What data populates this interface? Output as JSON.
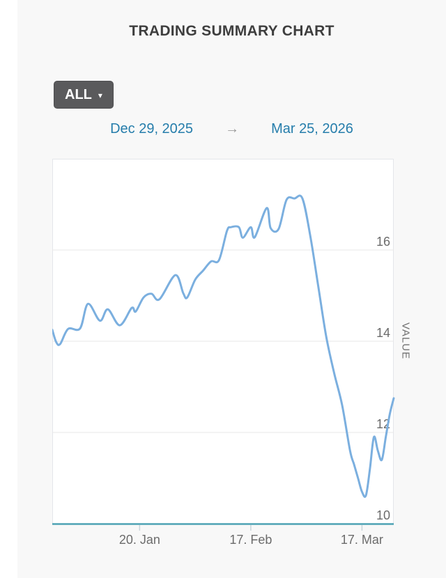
{
  "header": {
    "title": "TRADING SUMMARY CHART"
  },
  "toolbar": {
    "range_button_label": "ALL",
    "caret": "▾"
  },
  "date_range": {
    "start": "Dec 29, 2025",
    "arrow": "→",
    "end": "Mar 25, 2026"
  },
  "colors": {
    "page_background": "#f8f8f8",
    "plot_background": "#ffffff",
    "gridline": "#e7e7e7",
    "plot_border": "#e4e6ea",
    "accent_line": "#7bafdf",
    "axis_baseline": "#4da2b4",
    "tick_mark": "#c9d6dc",
    "axis_text": "#6b6b6b",
    "date_link": "#257dab",
    "button_background": "#5a5a5c"
  },
  "chart_data": {
    "type": "line",
    "title": "TRADING SUMMARY CHART",
    "ylabel": "VALUE",
    "xlabel": "",
    "ylim": [
      10,
      18
    ],
    "yticks": [
      16,
      14,
      12,
      10
    ],
    "xlim": [
      "2025-12-29",
      "2026-03-25"
    ],
    "xticks": [
      {
        "date": "2026-01-20",
        "label": "20. Jan"
      },
      {
        "date": "2026-02-17",
        "label": "17. Feb"
      },
      {
        "date": "2026-03-17",
        "label": "17. Mar"
      }
    ],
    "grid": "horizontal-only",
    "legend": "none",
    "series": [
      {
        "name": "VALUE",
        "points": [
          [
            "2025-12-29",
            14.25
          ],
          [
            "2025-12-30",
            13.98
          ],
          [
            "2025-12-31",
            13.94
          ],
          [
            "2026-01-02",
            14.27
          ],
          [
            "2026-01-05",
            14.28
          ],
          [
            "2026-01-07",
            14.82
          ],
          [
            "2026-01-10",
            14.45
          ],
          [
            "2026-01-12",
            14.7
          ],
          [
            "2026-01-15",
            14.35
          ],
          [
            "2026-01-18",
            14.73
          ],
          [
            "2026-01-19",
            14.65
          ],
          [
            "2026-01-21",
            14.96
          ],
          [
            "2026-01-23",
            15.04
          ],
          [
            "2026-01-25",
            14.92
          ],
          [
            "2026-01-29",
            15.45
          ],
          [
            "2026-01-31",
            15.05
          ],
          [
            "2026-02-01",
            14.96
          ],
          [
            "2026-02-03",
            15.35
          ],
          [
            "2026-02-05",
            15.55
          ],
          [
            "2026-02-07",
            15.75
          ],
          [
            "2026-02-09",
            15.78
          ],
          [
            "2026-02-11",
            16.42
          ],
          [
            "2026-02-12",
            16.5
          ],
          [
            "2026-02-14",
            16.5
          ],
          [
            "2026-02-15",
            16.27
          ],
          [
            "2026-02-17",
            16.5
          ],
          [
            "2026-02-18",
            16.28
          ],
          [
            "2026-02-21",
            16.92
          ],
          [
            "2026-02-22",
            16.48
          ],
          [
            "2026-02-24",
            16.46
          ],
          [
            "2026-02-26",
            17.1
          ],
          [
            "2026-02-28",
            17.13
          ],
          [
            "2026-03-02",
            17.13
          ],
          [
            "2026-03-04",
            16.3
          ],
          [
            "2026-03-06",
            15.2
          ],
          [
            "2026-03-08",
            14.1
          ],
          [
            "2026-03-10",
            13.3
          ],
          [
            "2026-03-12",
            12.6
          ],
          [
            "2026-03-14",
            11.6
          ],
          [
            "2026-03-15",
            11.3
          ],
          [
            "2026-03-16",
            11.0
          ],
          [
            "2026-03-17",
            10.7
          ],
          [
            "2026-03-18",
            10.62
          ],
          [
            "2026-03-19",
            11.2
          ],
          [
            "2026-03-20",
            11.9
          ],
          [
            "2026-03-21",
            11.6
          ],
          [
            "2026-03-22",
            11.4
          ],
          [
            "2026-03-23",
            11.9
          ],
          [
            "2026-03-24",
            12.4
          ],
          [
            "2026-03-25",
            12.75
          ]
        ]
      }
    ]
  }
}
